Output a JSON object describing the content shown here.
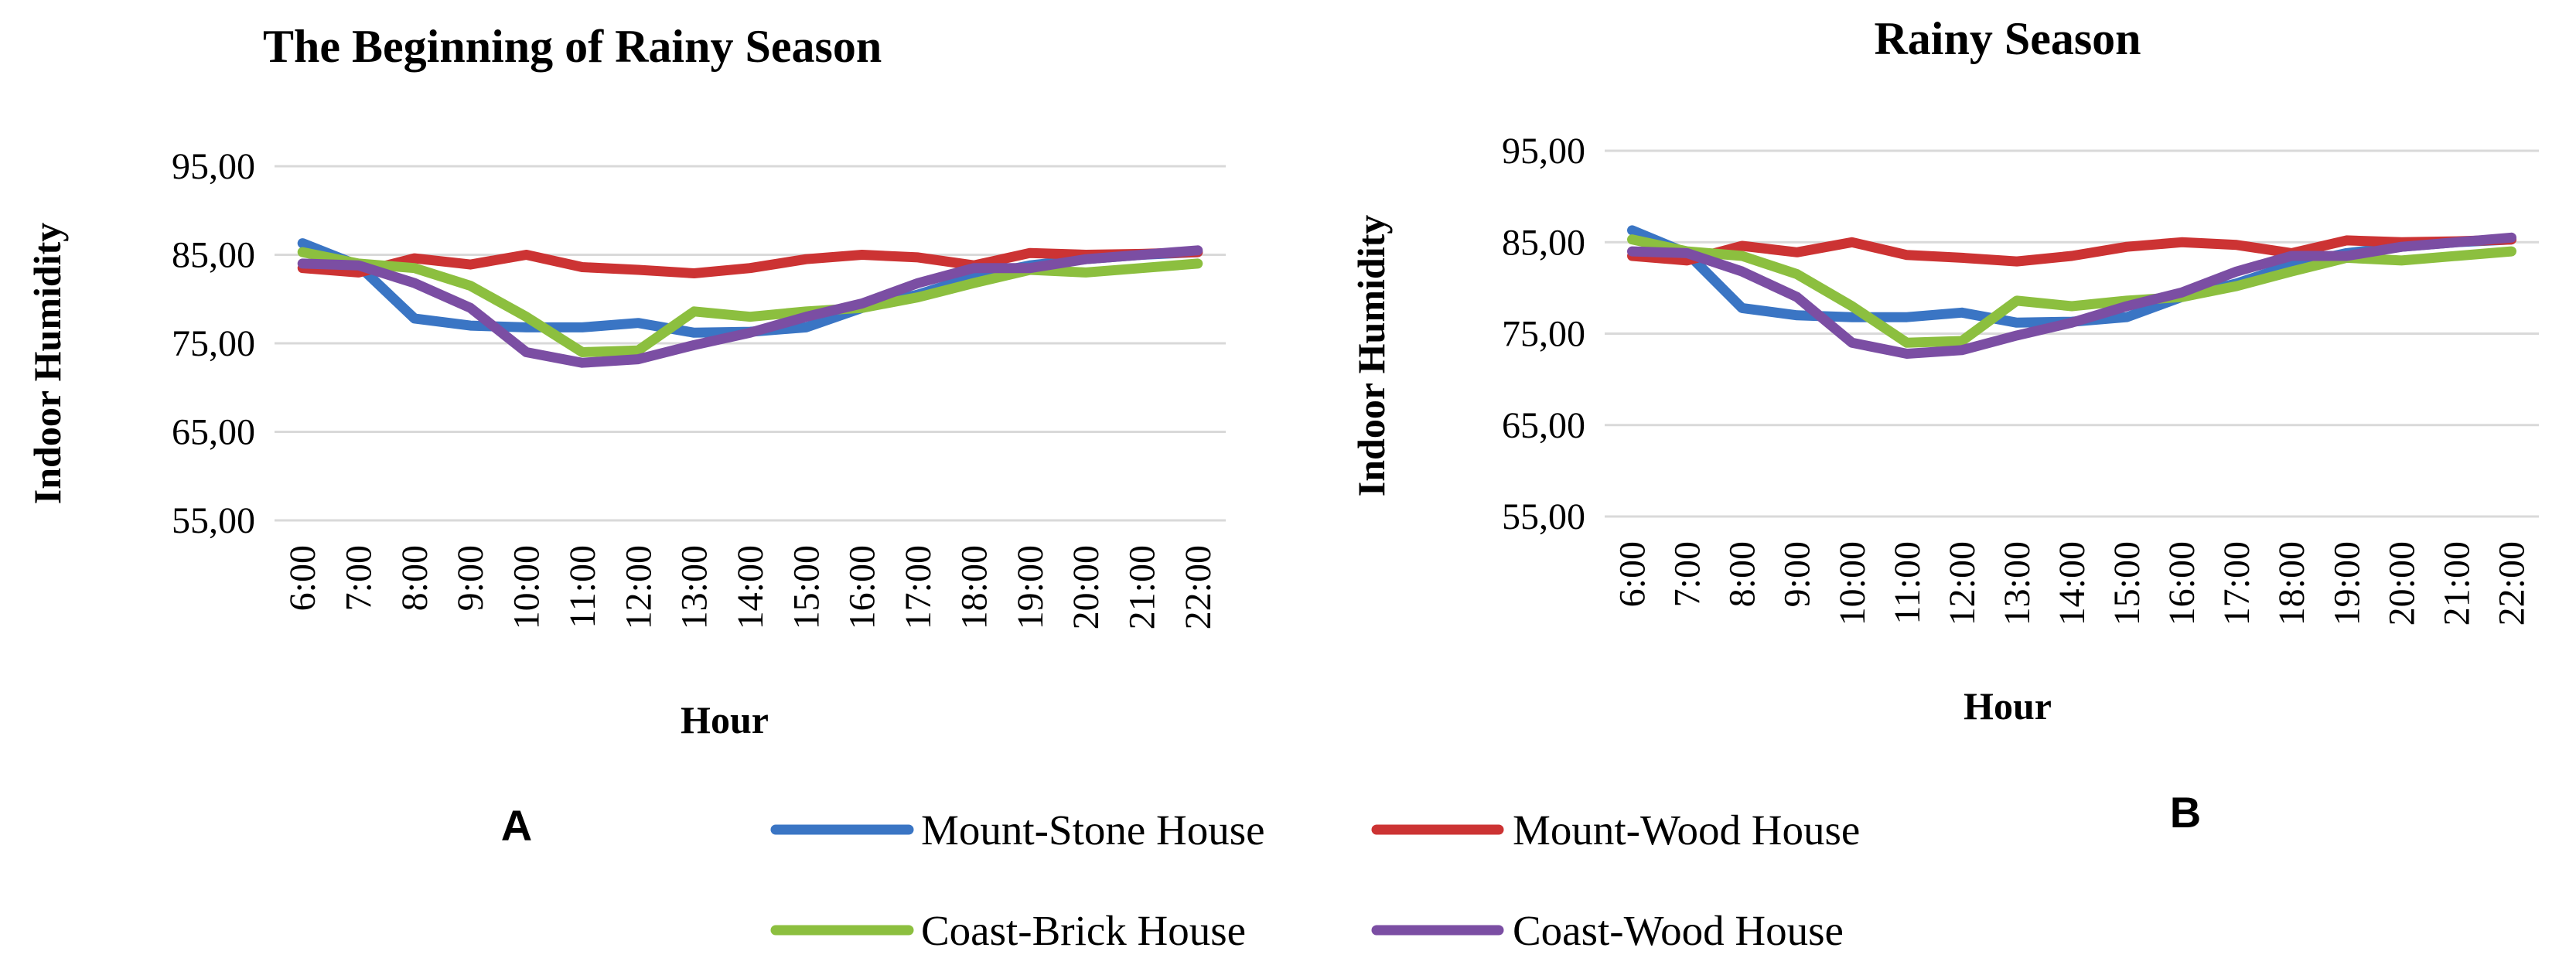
{
  "chart_data": [
    {
      "type": "line",
      "panel_label": "A",
      "title": "The Beginning of Rainy Season",
      "xlabel": "Hour",
      "ylabel": "Indoor Humidity",
      "ylim": [
        55,
        95
      ],
      "yticks": [
        "95,00",
        "85,00",
        "75,00",
        "65,00",
        "55,00"
      ],
      "ytick_values": [
        95,
        85,
        75,
        65,
        55
      ],
      "grid": true,
      "categories": [
        "6:00",
        "7:00",
        "8:00",
        "9:00",
        "10:00",
        "11:00",
        "12:00",
        "13:00",
        "14:00",
        "15:00",
        "16:00",
        "17:00",
        "18:00",
        "19:00",
        "20:00",
        "21:00",
        "22:00"
      ],
      "series": [
        {
          "name": "Mount-Stone House",
          "color": "#3a75c4",
          "values": [
            86.3,
            83.8,
            77.8,
            77.0,
            76.8,
            76.8,
            77.3,
            76.2,
            76.3,
            76.8,
            79.0,
            80.5,
            82.5,
            83.8,
            84.5,
            85.0,
            85.3
          ]
        },
        {
          "name": "Mount-Wood House",
          "color": "#cc3333",
          "values": [
            83.5,
            83.0,
            84.6,
            83.9,
            85.0,
            83.6,
            83.3,
            82.9,
            83.5,
            84.5,
            85.0,
            84.7,
            83.8,
            85.2,
            85.0,
            85.1,
            85.3
          ]
        },
        {
          "name": "Coast-Brick House",
          "color": "#8cbf3f",
          "values": [
            85.3,
            84.0,
            83.5,
            81.5,
            78.0,
            74.0,
            74.2,
            78.6,
            78.0,
            78.6,
            79.0,
            80.2,
            81.8,
            83.3,
            83.0,
            83.5,
            84.0
          ]
        },
        {
          "name": "Coast-Wood House",
          "color": "#7b4ea3",
          "values": [
            84.0,
            83.8,
            81.8,
            79.0,
            74.0,
            72.8,
            73.2,
            74.8,
            76.2,
            78.0,
            79.5,
            81.8,
            83.5,
            83.5,
            84.5,
            85.0,
            85.5
          ]
        }
      ]
    },
    {
      "type": "line",
      "panel_label": "B",
      "title": "Rainy Season",
      "xlabel": "Hour",
      "ylabel": "Indoor Humidity",
      "ylim": [
        55,
        95
      ],
      "yticks": [
        "95,00",
        "85,00",
        "75,00",
        "65,00",
        "55,00"
      ],
      "ytick_values": [
        95,
        85,
        75,
        65,
        55
      ],
      "grid": true,
      "categories": [
        "6:00",
        "7:00",
        "8:00",
        "9:00",
        "10:00",
        "11:00",
        "12:00",
        "13:00",
        "14:00",
        "15:00",
        "16:00",
        "17:00",
        "18:00",
        "19:00",
        "20:00",
        "21:00",
        "22:00"
      ],
      "series": [
        {
          "name": "Mount-Stone House",
          "color": "#3a75c4",
          "values": [
            86.3,
            83.8,
            77.8,
            77.0,
            76.8,
            76.8,
            77.3,
            76.2,
            76.3,
            76.8,
            79.0,
            80.5,
            82.5,
            83.8,
            84.5,
            85.0,
            85.3
          ]
        },
        {
          "name": "Mount-Wood House",
          "color": "#cc3333",
          "values": [
            83.5,
            83.0,
            84.6,
            83.9,
            85.0,
            83.6,
            83.3,
            82.9,
            83.5,
            84.5,
            85.0,
            84.7,
            83.8,
            85.2,
            85.0,
            85.1,
            85.3
          ]
        },
        {
          "name": "Coast-Brick House",
          "color": "#8cbf3f",
          "values": [
            85.3,
            84.0,
            83.5,
            81.5,
            78.0,
            74.0,
            74.2,
            78.6,
            78.0,
            78.6,
            79.0,
            80.2,
            81.8,
            83.3,
            83.0,
            83.5,
            84.0
          ]
        },
        {
          "name": "Coast-Wood House",
          "color": "#7b4ea3",
          "values": [
            84.0,
            83.8,
            81.8,
            79.0,
            74.0,
            72.8,
            73.2,
            74.8,
            76.2,
            78.0,
            79.5,
            81.8,
            83.5,
            83.5,
            84.5,
            85.0,
            85.5
          ]
        }
      ]
    }
  ],
  "legend": {
    "items": [
      {
        "name": "Mount-Stone House",
        "color": "#3a75c4"
      },
      {
        "name": "Mount-Wood House",
        "color": "#cc3333"
      },
      {
        "name": "Coast-Brick House",
        "color": "#8cbf3f"
      },
      {
        "name": "Coast-Wood House",
        "color": "#7b4ea3"
      }
    ]
  },
  "panel_labels": {
    "left": "A",
    "right": "B"
  }
}
